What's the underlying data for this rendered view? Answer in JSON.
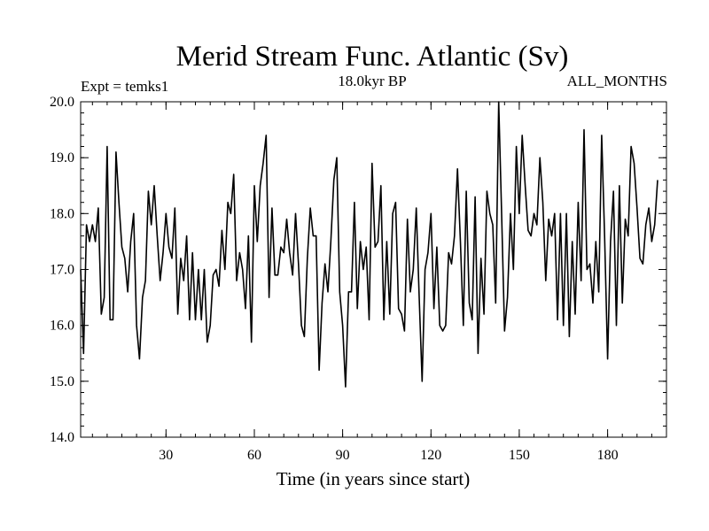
{
  "chart_data": {
    "type": "line",
    "title": "Merid Stream Func. Atlantic (Sv)",
    "experiment_label": "Expt = temks1",
    "subtitle": "18.0kyr BP",
    "period_label": "ALL_MONTHS",
    "xlabel": "Time (in years since start)",
    "ylabel": "",
    "xlim": [
      1,
      200
    ],
    "ylim": [
      14.0,
      20.0
    ],
    "xticks": [
      30,
      60,
      90,
      120,
      150,
      180
    ],
    "xtick_labels": [
      "30",
      "60",
      "90",
      "120",
      "150",
      "180"
    ],
    "yticks": [
      14.0,
      15.0,
      16.0,
      17.0,
      18.0,
      19.0,
      20.0
    ],
    "ytick_labels": [
      "14.0",
      "15.0",
      "16.0",
      "17.0",
      "18.0",
      "19.0",
      "20.0"
    ],
    "grid": false,
    "series": [
      {
        "name": "Merid Stream Func. Atlantic",
        "values": [
          17.0,
          15.5,
          17.8,
          17.5,
          17.8,
          17.5,
          18.1,
          16.2,
          16.5,
          19.2,
          16.1,
          16.1,
          19.1,
          18.2,
          17.4,
          17.2,
          16.6,
          17.5,
          18.0,
          16.0,
          15.4,
          16.5,
          16.8,
          18.4,
          17.8,
          18.5,
          17.6,
          16.8,
          17.3,
          18.0,
          17.4,
          17.2,
          18.1,
          16.2,
          17.2,
          16.8,
          17.6,
          16.1,
          17.3,
          16.1,
          17.0,
          16.1,
          17.0,
          15.7,
          16.0,
          16.9,
          17.0,
          16.7,
          17.7,
          17.0,
          18.2,
          18.0,
          18.7,
          16.8,
          17.3,
          17.0,
          16.3,
          17.6,
          15.7,
          18.5,
          17.5,
          18.5,
          18.9,
          19.4,
          16.5,
          18.1,
          16.9,
          16.9,
          17.4,
          17.3,
          17.9,
          17.3,
          16.9,
          18.0,
          17.1,
          16.0,
          15.8,
          17.2,
          18.1,
          17.6,
          17.6,
          15.2,
          16.4,
          17.1,
          16.6,
          17.5,
          18.6,
          19.0,
          16.6,
          16.0,
          14.9,
          16.6,
          16.6,
          18.2,
          16.3,
          17.5,
          17.0,
          17.4,
          16.1,
          18.9,
          17.4,
          17.5,
          18.5,
          16.1,
          17.5,
          16.2,
          18.0,
          18.2,
          16.3,
          16.2,
          15.9,
          17.9,
          16.6,
          17.0,
          18.1,
          16.5,
          15.0,
          17.0,
          17.3,
          18.0,
          16.3,
          17.4,
          16.0,
          15.9,
          16.0,
          17.3,
          17.1,
          17.6,
          18.8,
          17.5,
          16.0,
          18.4,
          16.4,
          16.1,
          18.3,
          15.5,
          17.2,
          16.2,
          18.4,
          18.0,
          17.8,
          16.4,
          20.0,
          18.0,
          15.9,
          16.5,
          18.0,
          17.0,
          19.2,
          18.0,
          19.4,
          18.5,
          17.7,
          17.6,
          18.0,
          17.8,
          19.0,
          18.2,
          16.8,
          17.9,
          17.6,
          18.0,
          16.1,
          18.0,
          16.0,
          18.0,
          15.8,
          17.5,
          16.2,
          18.2,
          16.8,
          19.5,
          17.0,
          17.1,
          16.4,
          17.5,
          16.6,
          19.4,
          17.6,
          15.4,
          17.5,
          18.4,
          16.0,
          18.5,
          16.4,
          17.9,
          17.6,
          19.2,
          18.9,
          18.1,
          17.2,
          17.1,
          17.8,
          18.1,
          17.5,
          17.8,
          18.6
        ]
      }
    ]
  }
}
